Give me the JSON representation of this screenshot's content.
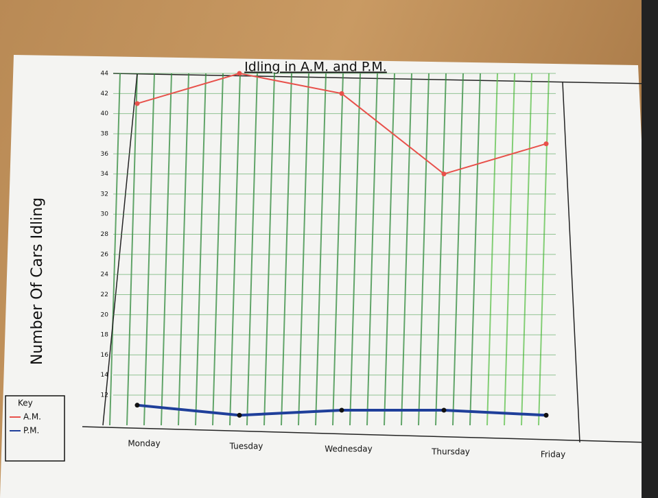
{
  "chart_data": {
    "type": "line",
    "title": "Idling in A.M. and P.M.",
    "y_label": "Number Of Cars Idling",
    "categories": [
      "Monday",
      "Tuesday",
      "Wednesday",
      "Thursday",
      "Friday"
    ],
    "series": [
      {
        "name": "A.M.",
        "color": "#e8504a",
        "values": [
          41,
          44,
          42,
          34,
          37
        ]
      },
      {
        "name": "P.M.",
        "color": "#1f3f9a",
        "values": [
          11,
          10,
          10.5,
          10.5,
          10
        ]
      }
    ],
    "legend_title": "Key",
    "legend": "bottom-left",
    "ylim": [
      9,
      44
    ],
    "yticks": [
      12,
      14,
      16,
      18,
      20,
      22,
      24,
      26,
      28,
      30,
      32,
      34,
      36,
      38,
      40,
      42,
      44
    ],
    "grid": true
  }
}
